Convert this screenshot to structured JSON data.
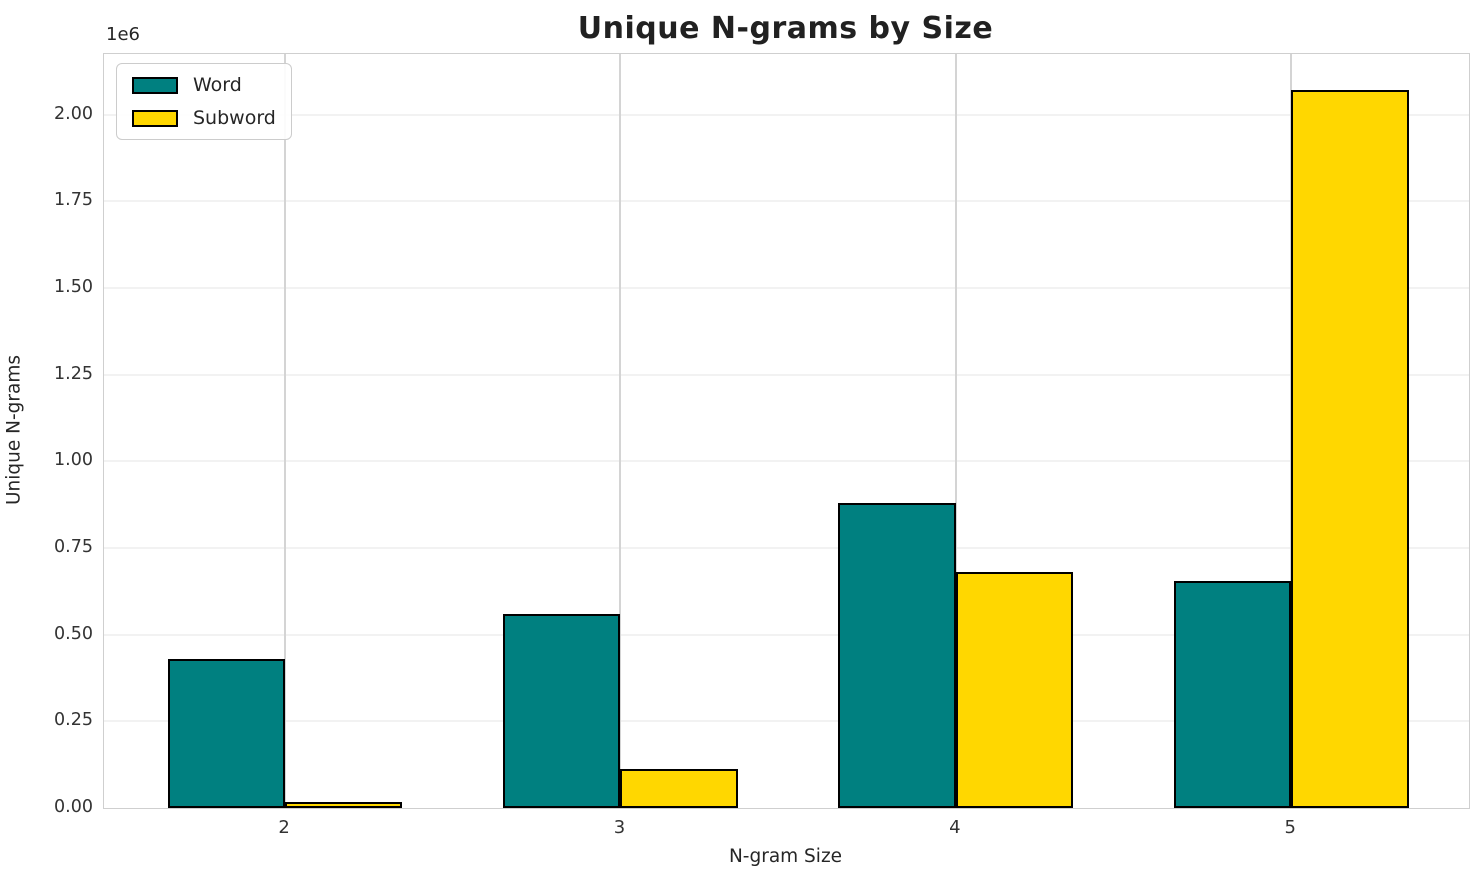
{
  "title": "Unique N-grams by Size",
  "offset_text": "1e6",
  "x_axis_label": "N-gram Size",
  "y_axis_label": "Unique N-grams",
  "legend": {
    "items": [
      {
        "label": "Word",
        "color": "#008080"
      },
      {
        "label": "Subword",
        "color": "#FFD700"
      }
    ]
  },
  "colors": {
    "word": "#008080",
    "subword": "#FFD700",
    "bar_edge": "#000000",
    "grid_horizontal": "#f2f2f2",
    "grid_vertical": "#d4d4d4",
    "spine": "#cfcfcf",
    "text": "#262626"
  },
  "chart_data": {
    "type": "bar",
    "categories": [
      "2",
      "3",
      "4",
      "5"
    ],
    "series": [
      {
        "name": "Word",
        "color": "#008080",
        "values": [
          430000,
          560000,
          880000,
          655000
        ]
      },
      {
        "name": "Subword",
        "color": "#FFD700",
        "values": [
          18000,
          113000,
          682000,
          2070000
        ]
      }
    ],
    "title": "Unique N-grams by Size",
    "xlabel": "N-gram Size",
    "ylabel": "Unique N-grams",
    "offset_text": "1e6",
    "ylim": [
      0,
      2175000
    ],
    "yticks": [
      0,
      250000,
      500000,
      750000,
      1000000,
      1250000,
      1500000,
      1750000,
      2000000
    ],
    "ytick_labels": [
      "0.00",
      "0.25",
      "0.50",
      "0.75",
      "1.00",
      "1.25",
      "1.50",
      "1.75",
      "2.00"
    ],
    "xlim": [
      1.46,
      5.53
    ],
    "bar_width": 0.35,
    "grid": true,
    "legend_position": "upper left"
  }
}
